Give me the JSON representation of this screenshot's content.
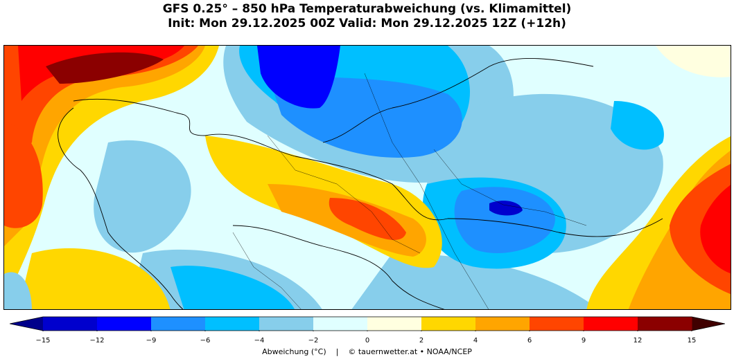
{
  "header": {
    "title_line1": "GFS 0.25° – 850 hPa Temperaturabweichung (vs. Klimamittel)",
    "title_line2": "Init: Mon 29.12.2025 00Z   Valid: Mon 29.12.2025 12Z (+12h)"
  },
  "colorbar": {
    "ticks": [
      "−15",
      "−12",
      "−9",
      "−6",
      "−4",
      "−2",
      "0",
      "2",
      "4",
      "6",
      "9",
      "12",
      "15"
    ],
    "colors": [
      "#0000cd",
      "#0000ff",
      "#1e90ff",
      "#00bfff",
      "#87ceeb",
      "#e0ffff",
      "#ffffe0",
      "#ffd700",
      "#ffa500",
      "#ff4500",
      "#ff0000",
      "#8b0000"
    ],
    "under_color": "#00008b",
    "over_color": "#400000"
  },
  "footer": {
    "label": "Abweichung (°C)",
    "separator": "|",
    "credit": "© tauernwetter.at  •  NOAA/NCEP"
  }
}
